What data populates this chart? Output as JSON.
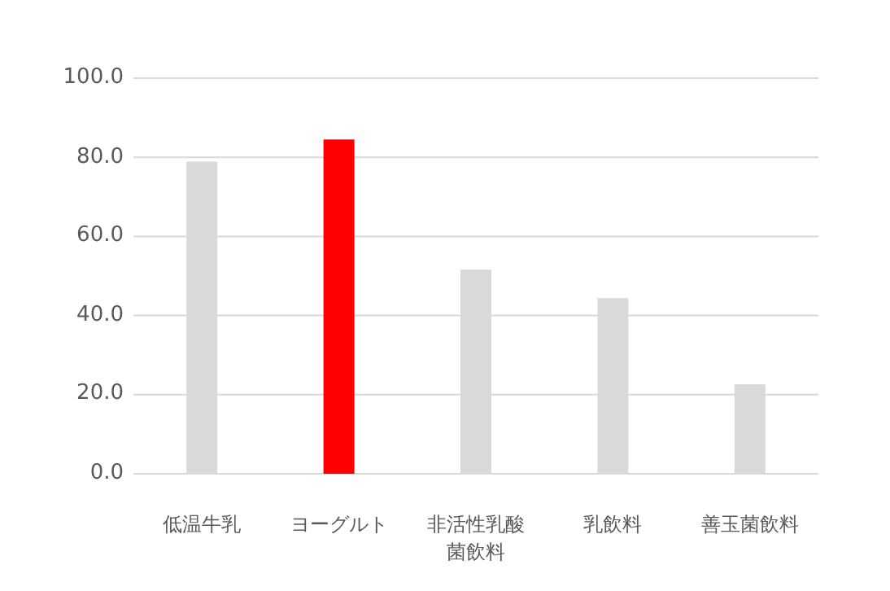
{
  "chart_data": {
    "type": "bar",
    "categories": [
      "低温牛乳",
      "ヨーグルト",
      "非活性乳酸菌飲料",
      "乳飲料",
      "善玉菌飲料"
    ],
    "values": [
      78.9,
      84.5,
      51.6,
      44.4,
      22.6
    ],
    "colors": [
      "#d9d9d9",
      "#ff0000",
      "#d9d9d9",
      "#d9d9d9",
      "#d9d9d9"
    ],
    "ylim": [
      0,
      100
    ],
    "yticks": [
      {
        "value": 0,
        "label": "0.0"
      },
      {
        "value": 20,
        "label": "20.0"
      },
      {
        "value": 40,
        "label": "40.0"
      },
      {
        "value": 60,
        "label": "60.0"
      },
      {
        "value": 80,
        "label": "80.0"
      },
      {
        "value": 100,
        "label": "100.0"
      }
    ],
    "grid": "y"
  }
}
